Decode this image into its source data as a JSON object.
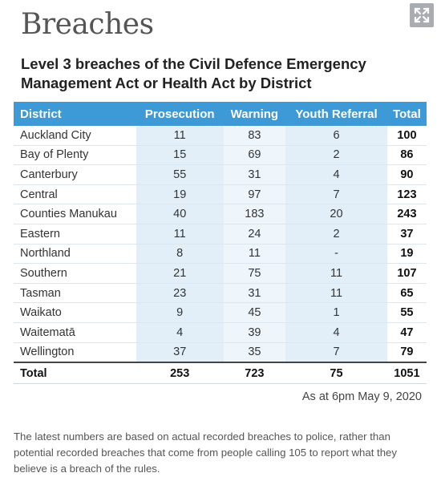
{
  "header": {
    "title": "Breaches",
    "subtitle": "Level 3 breaches of the Civil Defence Emergency Management Act or Health Act by District"
  },
  "table": {
    "columns": [
      "District",
      "Prosecution",
      "Warning",
      "Youth Referral",
      "Total"
    ],
    "rows": [
      [
        "Auckland City",
        "11",
        "83",
        "6",
        "100"
      ],
      [
        "Bay of Plenty",
        "15",
        "69",
        "2",
        "86"
      ],
      [
        "Canterbury",
        "55",
        "31",
        "4",
        "90"
      ],
      [
        "Central",
        "19",
        "97",
        "7",
        "123"
      ],
      [
        "Counties Manukau",
        "40",
        "183",
        "20",
        "243"
      ],
      [
        "Eastern",
        "11",
        "24",
        "2",
        "37"
      ],
      [
        "Northland",
        "8",
        "11",
        "-",
        "19"
      ],
      [
        "Southern",
        "21",
        "75",
        "11",
        "107"
      ],
      [
        "Tasman",
        "23",
        "31",
        "11",
        "65"
      ],
      [
        "Waikato",
        "9",
        "45",
        "1",
        "55"
      ],
      [
        "Waitematā",
        "4",
        "39",
        "4",
        "47"
      ],
      [
        "Wellington",
        "37",
        "35",
        "7",
        "79"
      ]
    ],
    "total": [
      "Total",
      "253",
      "723",
      "75",
      "1051"
    ]
  },
  "note": "As at 6pm May 9, 2020",
  "footer": "The latest numbers are based on actual recorded breaches to police, rather than potential recorded breaches that come from people calling 105 to report what they believe is a breach of the rules."
}
